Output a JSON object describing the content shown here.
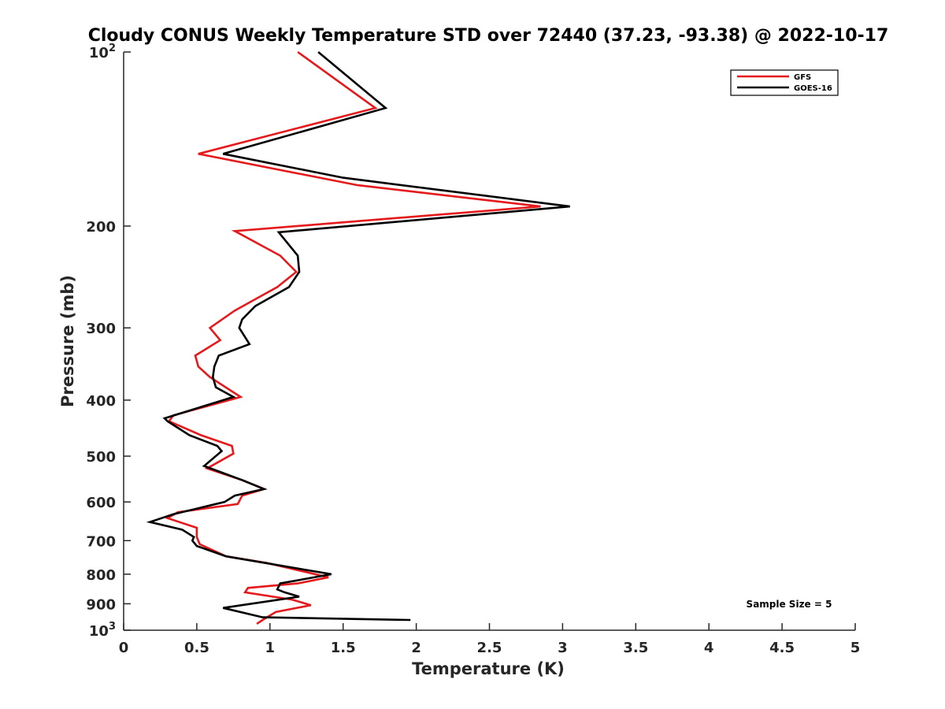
{
  "chart_data": {
    "type": "line",
    "title": "Cloudy CONUS Weekly Temperature STD over 72440 (37.23, -93.38) @ 2022-10-17",
    "xlabel": "Temperature (K)",
    "ylabel": "Pressure (mb)",
    "xlim": [
      0,
      5
    ],
    "ylim": [
      1000,
      100
    ],
    "yscale": "log",
    "yreverse": true,
    "x_ticks": [
      0,
      0.5,
      1,
      1.5,
      2,
      2.5,
      3,
      3.5,
      4,
      4.5,
      5
    ],
    "x_tick_labels": [
      "0",
      "0.5",
      "1",
      "1.5",
      "2",
      "2.5",
      "3",
      "3.5",
      "4",
      "4.5",
      "5"
    ],
    "y_ticks": [
      100,
      200,
      300,
      400,
      500,
      600,
      700,
      800,
      900,
      1000
    ],
    "y_tick_labels": [
      {
        "base": "10",
        "exp": "2"
      },
      {
        "base": "200",
        "exp": ""
      },
      {
        "base": "300",
        "exp": ""
      },
      {
        "base": "400",
        "exp": ""
      },
      {
        "base": "500",
        "exp": ""
      },
      {
        "base": "600",
        "exp": ""
      },
      {
        "base": "700",
        "exp": ""
      },
      {
        "base": "800",
        "exp": ""
      },
      {
        "base": "900",
        "exp": ""
      },
      {
        "base": "10",
        "exp": "3"
      }
    ],
    "legend_position": "top-right",
    "annotation": "Sample Size = 5",
    "series": [
      {
        "name": "GFS",
        "color": "#e41a1c",
        "points": [
          [
            1.19,
            100
          ],
          [
            1.72,
            125
          ],
          [
            0.51,
            150
          ],
          [
            1.6,
            170
          ],
          [
            2.85,
            185
          ],
          [
            0.76,
            204
          ],
          [
            1.07,
            225
          ],
          [
            1.18,
            240
          ],
          [
            1.05,
            255
          ],
          [
            0.76,
            280
          ],
          [
            0.59,
            300
          ],
          [
            0.66,
            315
          ],
          [
            0.49,
            335
          ],
          [
            0.51,
            350
          ],
          [
            0.59,
            365
          ],
          [
            0.8,
            395
          ],
          [
            0.34,
            425
          ],
          [
            0.31,
            435
          ],
          [
            0.53,
            460
          ],
          [
            0.74,
            480
          ],
          [
            0.75,
            495
          ],
          [
            0.57,
            525
          ],
          [
            0.81,
            550
          ],
          [
            0.96,
            570
          ],
          [
            0.81,
            585
          ],
          [
            0.78,
            605
          ],
          [
            0.37,
            625
          ],
          [
            0.3,
            640
          ],
          [
            0.5,
            665
          ],
          [
            0.5,
            690
          ],
          [
            0.52,
            710
          ],
          [
            0.7,
            745
          ],
          [
            0.98,
            765
          ],
          [
            1.4,
            810
          ],
          [
            1.19,
            830
          ],
          [
            0.85,
            845
          ],
          [
            0.83,
            860
          ],
          [
            1.15,
            885
          ],
          [
            1.28,
            905
          ],
          [
            1.04,
            930
          ],
          [
            0.95,
            960
          ],
          [
            0.91,
            975
          ]
        ]
      },
      {
        "name": "GOES-16",
        "color": "#000000",
        "points": [
          [
            1.33,
            100
          ],
          [
            1.79,
            125
          ],
          [
            0.68,
            150
          ],
          [
            1.5,
            165
          ],
          [
            3.05,
            185
          ],
          [
            1.06,
            205
          ],
          [
            1.19,
            225
          ],
          [
            1.2,
            240
          ],
          [
            1.13,
            255
          ],
          [
            0.9,
            275
          ],
          [
            0.81,
            290
          ],
          [
            0.79,
            300
          ],
          [
            0.86,
            320
          ],
          [
            0.65,
            335
          ],
          [
            0.62,
            350
          ],
          [
            0.61,
            365
          ],
          [
            0.63,
            380
          ],
          [
            0.75,
            395
          ],
          [
            0.28,
            430
          ],
          [
            0.3,
            435
          ],
          [
            0.45,
            460
          ],
          [
            0.64,
            480
          ],
          [
            0.67,
            490
          ],
          [
            0.55,
            520
          ],
          [
            0.81,
            550
          ],
          [
            0.96,
            570
          ],
          [
            0.76,
            585
          ],
          [
            0.69,
            600
          ],
          [
            0.34,
            630
          ],
          [
            0.18,
            650
          ],
          [
            0.4,
            670
          ],
          [
            0.48,
            690
          ],
          [
            0.47,
            700
          ],
          [
            0.5,
            715
          ],
          [
            0.7,
            745
          ],
          [
            1.42,
            800
          ],
          [
            1.07,
            830
          ],
          [
            1.05,
            850
          ],
          [
            1.1,
            860
          ],
          [
            1.2,
            875
          ],
          [
            0.68,
            915
          ],
          [
            0.95,
            950
          ],
          [
            1.96,
            960
          ]
        ]
      }
    ]
  }
}
